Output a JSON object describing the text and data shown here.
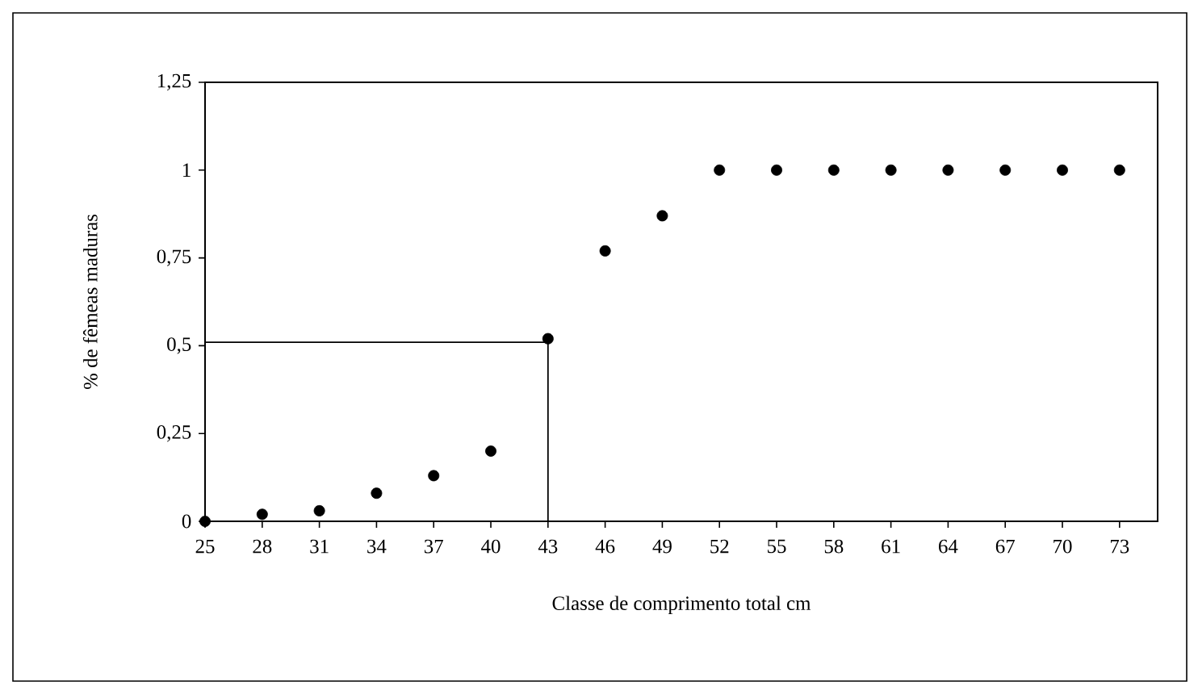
{
  "chart_data": {
    "type": "scatter",
    "xlabel": "Classe de comprimento total  cm",
    "ylabel": "% de fêmeas maduras",
    "xlim": [
      25,
      75
    ],
    "xticks": [
      25,
      28,
      31,
      34,
      37,
      40,
      43,
      46,
      49,
      52,
      55,
      58,
      61,
      64,
      67,
      70,
      73
    ],
    "ylim": [
      0,
      1.25
    ],
    "yticks": [
      0,
      {
        "value": 0.25,
        "label": "0,25"
      },
      {
        "value": 0.5,
        "label": "0,5"
      },
      {
        "value": 0.75,
        "label": "0,75"
      },
      1,
      {
        "value": 1.25,
        "label": "1,25"
      }
    ],
    "marker": "circle",
    "series": [
      {
        "color": "#000000",
        "x": [
          25,
          28,
          31,
          34,
          37,
          40,
          43,
          46,
          49,
          52,
          55,
          58,
          61,
          64,
          67,
          70,
          73
        ],
        "values": [
          0,
          0.02,
          0.03,
          0.08,
          0.13,
          0.2,
          0.52,
          0.77,
          0.87,
          1,
          1,
          1,
          1,
          1,
          1,
          1,
          1
        ]
      },
      {
        "type": "line",
        "color": "#000000",
        "marker": "none",
        "x": [
          25,
          43,
          43
        ],
        "values": [
          0.51,
          0.51,
          0
        ]
      }
    ]
  }
}
